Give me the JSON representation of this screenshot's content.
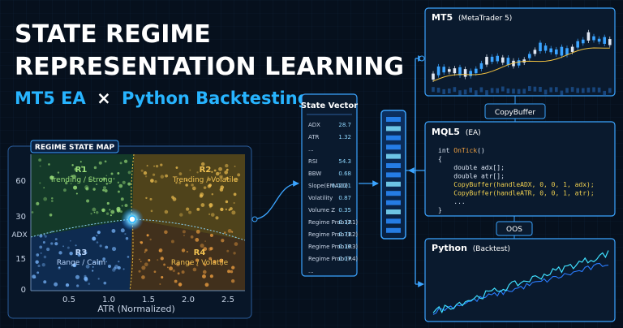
{
  "header": {
    "line1": "STATE REGIME",
    "line2": "REPRESENTATION LEARNING",
    "sub_a": "MT5 EA",
    "times": "×",
    "sub_b": "Python Backtesting"
  },
  "regime_map": {
    "title": "REGIME STATE MAP",
    "y_label": "ADX",
    "x_label": "ATR (Normalized)",
    "y_ticks": [
      "60",
      "30",
      "15",
      "0"
    ],
    "x_ticks": [
      "0.5",
      "1.0",
      "1.5",
      "2.0",
      "2.5"
    ],
    "regions": [
      {
        "id": "R1",
        "label": "Trending / Strong"
      },
      {
        "id": "R2",
        "label": "Trending / Volatile"
      },
      {
        "id": "R3",
        "label": "Range / Calm"
      },
      {
        "id": "R4",
        "label": "Range / Volatile"
      }
    ]
  },
  "state_vector": {
    "title": "State Vector",
    "rows": [
      [
        "ADX",
        "28.7"
      ],
      [
        "ATR",
        "1.32"
      ],
      [
        "..."
      ],
      [
        "RSI",
        "54.3"
      ],
      [
        "BBW",
        "0.68"
      ],
      [
        "Slope(EMA20)",
        "0.0021"
      ],
      [
        "Volatility",
        "0.87"
      ],
      [
        "Volume Z",
        "0.35"
      ],
      [
        "Regime Prob (R1)",
        "0.12"
      ],
      [
        "Regime Prob (R2)",
        "0.71"
      ],
      [
        "Regime Prob (R3)",
        "0.10"
      ],
      [
        "Regime Prob (R4)",
        "0.07"
      ],
      [
        "..."
      ]
    ]
  },
  "mt5": {
    "title": "MT5",
    "detail": "(MetaTrader 5)"
  },
  "copybuffer": "CopyBuffer",
  "mql5": {
    "title": "MQL5",
    "detail": "(EA)",
    "code": [
      [
        "int ",
        "OnTick",
        "()"
      ],
      [
        "{"
      ],
      [
        "    double adx[];"
      ],
      [
        "    double atr[];"
      ],
      [
        "    CopyBuffer(handleADX, 0, 0, 1, adx);"
      ],
      [
        "    CopyBuffer(handleATR, 0, 0, 1, atr);"
      ],
      [
        "    ..."
      ],
      [
        "}"
      ]
    ]
  },
  "oos": "OOS",
  "python": {
    "title": "Python",
    "detail": "(Backtest)"
  }
}
